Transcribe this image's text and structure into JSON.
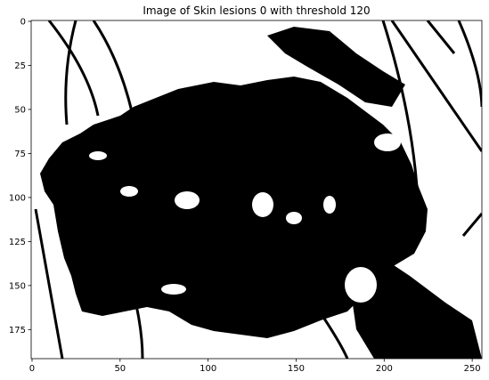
{
  "chart_data": {
    "type": "image",
    "title": "Image of Skin lesions 0 with threshold 120",
    "xlim": [
      -0.5,
      255.5
    ],
    "xticks": [
      0,
      50,
      100,
      150,
      200,
      250
    ],
    "ylim": [
      191.5,
      -0.5
    ],
    "yticks": [
      0,
      25,
      50,
      75,
      100,
      125,
      150,
      175
    ],
    "cmap": "gray"
  }
}
